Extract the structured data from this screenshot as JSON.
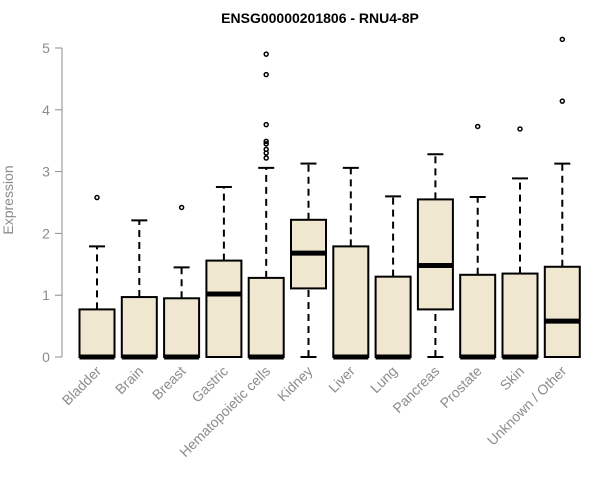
{
  "chart_data": {
    "type": "box",
    "title": "ENSG00000201806 - RNU4-8P",
    "xlabel": "",
    "ylabel": "Expression",
    "ylim": [
      0,
      5.2
    ],
    "yticks": [
      "0",
      "1",
      "2",
      "3",
      "4",
      "5"
    ],
    "grid": false,
    "box_fill": "#efe7cf",
    "line_color": "#000000",
    "axis_color": "#8c8c8c",
    "categories": [
      "Bladder",
      "Brain",
      "Breast",
      "Gastric",
      "Hematopoietic cells",
      "Kidney",
      "Liver",
      "Lung",
      "Pancreas",
      "Prostate",
      "Skin",
      "Unknown / Other"
    ],
    "boxes": [
      {
        "whisker_low": 0,
        "q1": 0,
        "median": 0,
        "q3": 0.77,
        "whisker_high": 1.79,
        "outliers": [
          2.58
        ]
      },
      {
        "whisker_low": 0,
        "q1": 0,
        "median": 0,
        "q3": 0.97,
        "whisker_high": 2.21,
        "outliers": []
      },
      {
        "whisker_low": 0,
        "q1": 0,
        "median": 0,
        "q3": 0.95,
        "whisker_high": 1.45,
        "outliers": [
          2.42
        ]
      },
      {
        "whisker_low": 0,
        "q1": 0,
        "median": 1.02,
        "q3": 1.56,
        "whisker_high": 2.75,
        "outliers": []
      },
      {
        "whisker_low": 0,
        "q1": 0,
        "median": 0,
        "q3": 1.28,
        "whisker_high": 3.06,
        "outliers": [
          3.22,
          3.3,
          3.36,
          3.45,
          3.49,
          3.76,
          4.57,
          4.9
        ]
      },
      {
        "whisker_low": 0,
        "q1": 1.11,
        "median": 1.68,
        "q3": 2.22,
        "whisker_high": 3.13,
        "outliers": []
      },
      {
        "whisker_low": 0,
        "q1": 0,
        "median": 0,
        "q3": 1.79,
        "whisker_high": 3.06,
        "outliers": []
      },
      {
        "whisker_low": 0,
        "q1": 0,
        "median": 0,
        "q3": 1.3,
        "whisker_high": 2.6,
        "outliers": []
      },
      {
        "whisker_low": 0,
        "q1": 0.77,
        "median": 1.48,
        "q3": 2.55,
        "whisker_high": 3.28,
        "outliers": []
      },
      {
        "whisker_low": 0,
        "q1": 0,
        "median": 0,
        "q3": 1.33,
        "whisker_high": 2.59,
        "outliers": [
          3.73
        ]
      },
      {
        "whisker_low": 0,
        "q1": 0,
        "median": 0,
        "q3": 1.35,
        "whisker_high": 2.89,
        "outliers": [
          3.69
        ]
      },
      {
        "whisker_low": 0,
        "q1": 0,
        "median": 0.58,
        "q3": 1.46,
        "whisker_high": 3.13,
        "outliers": [
          4.14,
          5.14
        ]
      }
    ]
  }
}
